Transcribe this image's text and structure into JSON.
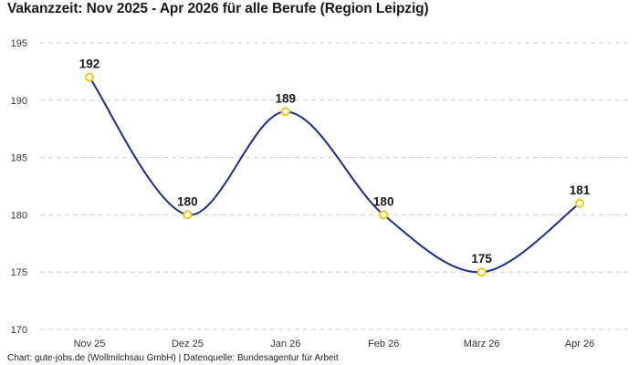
{
  "chart_data": {
    "type": "line",
    "title": "Vakanzzeit: Nov 2025 - Apr 2026 für alle Berufe (Region Leipzig)",
    "source": "Chart: gute-jobs.de (Wollmilchsau GmbH) | Datenquelle: Bundesagentur für Arbeit",
    "categories": [
      "Nov 25",
      "Dez 25",
      "Jan 26",
      "Feb 26",
      "März 26",
      "Apr 26"
    ],
    "values": [
      192,
      180,
      189,
      180,
      175,
      181
    ],
    "data_labels": [
      "192",
      "180",
      "189",
      "180",
      "175",
      "181"
    ],
    "yticks": [
      170,
      175,
      180,
      185,
      190,
      195
    ],
    "ylim": [
      170,
      195
    ],
    "xlabel": "",
    "ylabel": "",
    "grid": true,
    "line_color": "#1f2d8a",
    "marker_color": "#f2c811"
  }
}
